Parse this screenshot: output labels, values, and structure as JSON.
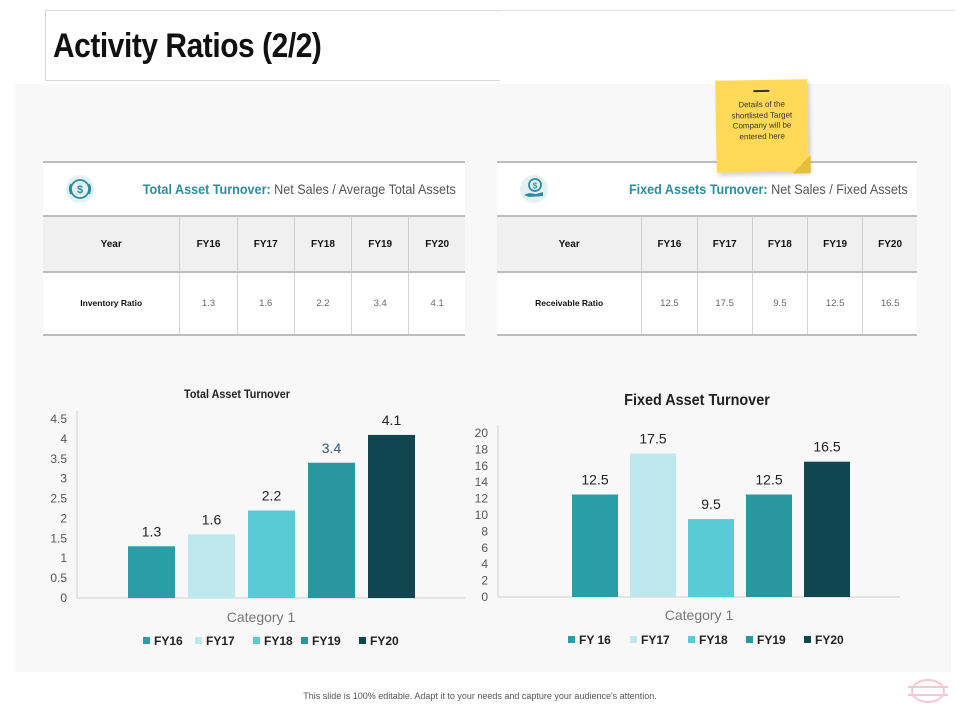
{
  "title": "Activity Ratios (2/2)",
  "sticky_note": {
    "text": "Details of the shortlisted Target Company will be entered here"
  },
  "tables": [
    {
      "header": {
        "name": "Total Asset Turnover:",
        "formula": " Net Sales / Average Total Assets",
        "icon": "dollar-icon"
      },
      "columns": [
        "Year",
        "FY16",
        "FY17",
        "FY18",
        "FY19",
        "FY20"
      ],
      "row_label": "Inventory Ratio",
      "values": [
        "1.3",
        "1.6",
        "2.2",
        "3.4",
        "4.1"
      ]
    },
    {
      "header": {
        "name": "Fixed Assets Turnover:",
        "formula": " Net Sales / Fixed Assets",
        "icon": "money-hand-icon"
      },
      "columns": [
        "Year",
        "FY16",
        "FY17",
        "FY18",
        "FY19",
        "FY20"
      ],
      "row_label": "Receivable Ratio",
      "values": [
        "12.5",
        "17.5",
        "9.5",
        "12.5",
        "16.5"
      ]
    }
  ],
  "chart_data": [
    {
      "type": "bar",
      "title": "Total Asset Turnover",
      "categories": [
        "Category 1"
      ],
      "series": [
        {
          "name": "FY16",
          "values": [
            1.3
          ],
          "color": "#2a9ea6"
        },
        {
          "name": "FY17",
          "values": [
            1.6
          ],
          "color": "#bfe8ee"
        },
        {
          "name": "FY18",
          "values": [
            2.2
          ],
          "color": "#57ccd6"
        },
        {
          "name": "FY19",
          "values": [
            3.4
          ],
          "color": "#2997a0"
        },
        {
          "name": "FY20",
          "values": [
            4.1
          ],
          "color": "#11454f"
        }
      ],
      "data_labels": [
        "1.3",
        "1.6",
        "2.2",
        "3.4",
        "4.1"
      ],
      "yticks": [
        "0",
        "0.5",
        "1",
        "1.5",
        "2",
        "2.5",
        "3",
        "3.5",
        "4",
        "4.5"
      ],
      "ylim": [
        0,
        4.5
      ],
      "xlabel": "",
      "ylabel": "",
      "grid": false,
      "legend_position": "bottom"
    },
    {
      "type": "bar",
      "title": "Fixed Asset Turnover",
      "categories": [
        "Category 1"
      ],
      "series": [
        {
          "name": "FY 16",
          "values": [
            12.5
          ],
          "color": "#2a9ea6"
        },
        {
          "name": "FY17",
          "values": [
            17.5
          ],
          "color": "#bfe8ee"
        },
        {
          "name": "FY18",
          "values": [
            9.5
          ],
          "color": "#57ccd6"
        },
        {
          "name": "FY19",
          "values": [
            12.5
          ],
          "color": "#2997a0"
        },
        {
          "name": "FY20",
          "values": [
            16.5
          ],
          "color": "#11454f"
        }
      ],
      "data_labels": [
        "12.5",
        "17.5",
        "9.5",
        "12.5",
        "16.5"
      ],
      "yticks": [
        "0",
        "2",
        "4",
        "6",
        "8",
        "10",
        "12",
        "14",
        "16",
        "18",
        "20"
      ],
      "ylim": [
        0,
        20
      ],
      "xlabel": "",
      "ylabel": "",
      "grid": false,
      "legend_position": "bottom"
    }
  ],
  "footer": "This slide is 100% editable. Adapt it to your needs and capture your audience's attention."
}
